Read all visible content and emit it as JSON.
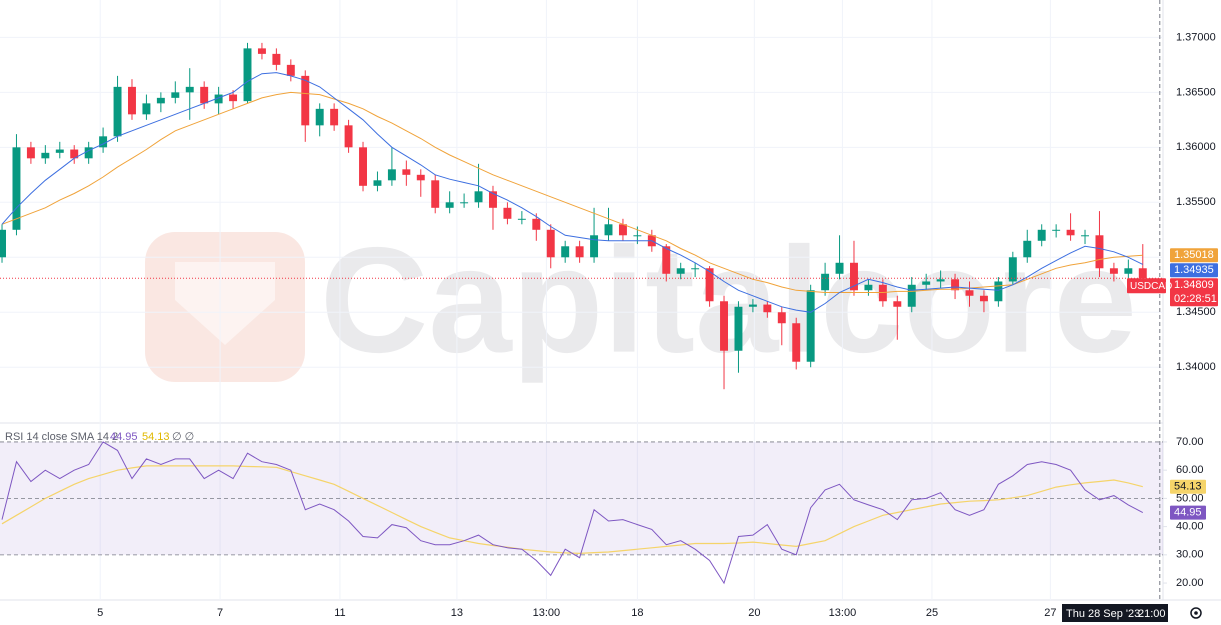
{
  "chart_data": {
    "type": "candlestick",
    "symbol": "USDCAD",
    "countdown": "02:28:51",
    "watermark": "Capitalcore",
    "up_color": "#089981",
    "down_color": "#f23645",
    "grid": true,
    "xlim": [
      -0.14,
      80.4
    ],
    "xticks": [
      {
        "value": 6.8,
        "label": "5"
      },
      {
        "value": 15.1,
        "label": "7"
      },
      {
        "value": 23.4,
        "label": "11"
      },
      {
        "value": 31.5,
        "label": "13"
      },
      {
        "value": 37.7,
        "label": "13:00"
      },
      {
        "value": 44,
        "label": "18"
      },
      {
        "value": 52.1,
        "label": "20"
      },
      {
        "value": 58.2,
        "label": "13:00"
      },
      {
        "value": 64.4,
        "label": "25"
      },
      {
        "value": 72.6,
        "label": "27"
      }
    ],
    "crosshair": {
      "x": 79,
      "date": "Thu 28 Sep '23",
      "time": "21:00"
    },
    "ylim": [
      1.3352,
      1.3734
    ],
    "yticks": [
      {
        "value": 1.37,
        "label": "1.37000"
      },
      {
        "value": 1.365,
        "label": "1.36500"
      },
      {
        "value": 1.36,
        "label": "1.36000"
      },
      {
        "value": 1.355,
        "label": "1.35500"
      },
      {
        "value": 1.35,
        "label": "1.35000"
      },
      {
        "value": 1.345,
        "label": "1.34500"
      },
      {
        "value": 1.34,
        "label": "1.34000"
      }
    ],
    "ohlc": [
      [
        1.35,
        1.353,
        1.3495,
        1.3525
      ],
      [
        1.3525,
        1.3612,
        1.352,
        1.36
      ],
      [
        1.36,
        1.3605,
        1.3585,
        1.359
      ],
      [
        1.359,
        1.3602,
        1.3585,
        1.3595
      ],
      [
        1.3595,
        1.3605,
        1.359,
        1.3598
      ],
      [
        1.3598,
        1.3602,
        1.3585,
        1.359
      ],
      [
        1.359,
        1.3605,
        1.3585,
        1.36
      ],
      [
        1.36,
        1.3618,
        1.3595,
        1.361
      ],
      [
        1.361,
        1.3665,
        1.3605,
        1.3655
      ],
      [
        1.3655,
        1.3662,
        1.3625,
        1.363
      ],
      [
        1.363,
        1.3648,
        1.3625,
        1.364
      ],
      [
        1.364,
        1.365,
        1.3632,
        1.3645
      ],
      [
        1.3645,
        1.366,
        1.364,
        1.365
      ],
      [
        1.365,
        1.3672,
        1.3625,
        1.3655
      ],
      [
        1.3655,
        1.366,
        1.3635,
        1.364
      ],
      [
        1.364,
        1.3655,
        1.363,
        1.3648
      ],
      [
        1.3648,
        1.3652,
        1.3635,
        1.3642
      ],
      [
        1.3642,
        1.3695,
        1.364,
        1.369
      ],
      [
        1.369,
        1.3695,
        1.368,
        1.3685
      ],
      [
        1.3685,
        1.369,
        1.367,
        1.3675
      ],
      [
        1.3675,
        1.368,
        1.366,
        1.3665
      ],
      [
        1.3665,
        1.367,
        1.3605,
        1.362
      ],
      [
        1.362,
        1.364,
        1.361,
        1.3635
      ],
      [
        1.3635,
        1.364,
        1.3615,
        1.362
      ],
      [
        1.362,
        1.3625,
        1.3595,
        1.36
      ],
      [
        1.36,
        1.3605,
        1.356,
        1.3565
      ],
      [
        1.3565,
        1.3578,
        1.356,
        1.357
      ],
      [
        1.357,
        1.36,
        1.3565,
        1.358
      ],
      [
        1.358,
        1.3588,
        1.3565,
        1.3575
      ],
      [
        1.3575,
        1.358,
        1.3555,
        1.357
      ],
      [
        1.357,
        1.3575,
        1.354,
        1.3545
      ],
      [
        1.3545,
        1.356,
        1.354,
        1.355
      ],
      [
        1.355,
        1.3558,
        1.3545,
        1.355
      ],
      [
        1.355,
        1.3585,
        1.3545,
        1.356
      ],
      [
        1.356,
        1.3565,
        1.3525,
        1.3545
      ],
      [
        1.3545,
        1.355,
        1.353,
        1.3535
      ],
      [
        1.3535,
        1.3542,
        1.353,
        1.3535
      ],
      [
        1.3535,
        1.354,
        1.3515,
        1.3525
      ],
      [
        1.3525,
        1.353,
        1.349,
        1.35
      ],
      [
        1.35,
        1.3515,
        1.3495,
        1.351
      ],
      [
        1.351,
        1.3515,
        1.3495,
        1.35
      ],
      [
        1.35,
        1.3545,
        1.3495,
        1.352
      ],
      [
        1.352,
        1.3545,
        1.3515,
        1.353
      ],
      [
        1.353,
        1.3535,
        1.3515,
        1.352
      ],
      [
        1.352,
        1.3528,
        1.3512,
        1.352
      ],
      [
        1.352,
        1.3525,
        1.3505,
        1.351
      ],
      [
        1.351,
        1.3512,
        1.3478,
        1.3485
      ],
      [
        1.3485,
        1.3495,
        1.348,
        1.349
      ],
      [
        1.349,
        1.3495,
        1.3482,
        1.349
      ],
      [
        1.349,
        1.3492,
        1.3455,
        1.346
      ],
      [
        1.346,
        1.3465,
        1.338,
        1.3415
      ],
      [
        1.3415,
        1.346,
        1.3395,
        1.3455
      ],
      [
        1.3455,
        1.3462,
        1.345,
        1.3457
      ],
      [
        1.3457,
        1.346,
        1.3445,
        1.345
      ],
      [
        1.345,
        1.3455,
        1.342,
        1.344
      ],
      [
        1.344,
        1.3445,
        1.3398,
        1.3405
      ],
      [
        1.3405,
        1.3475,
        1.34,
        1.347
      ],
      [
        1.347,
        1.3495,
        1.3465,
        1.3485
      ],
      [
        1.3485,
        1.352,
        1.348,
        1.3495
      ],
      [
        1.3495,
        1.3515,
        1.3465,
        1.347
      ],
      [
        1.347,
        1.348,
        1.3465,
        1.3475
      ],
      [
        1.3475,
        1.348,
        1.3455,
        1.346
      ],
      [
        1.346,
        1.3465,
        1.3425,
        1.3455
      ],
      [
        1.3455,
        1.3482,
        1.345,
        1.3475
      ],
      [
        1.3475,
        1.3485,
        1.347,
        1.3478
      ],
      [
        1.3478,
        1.3488,
        1.3472,
        1.348
      ],
      [
        1.348,
        1.3485,
        1.3462,
        1.347
      ],
      [
        1.347,
        1.3478,
        1.3455,
        1.3465
      ],
      [
        1.3465,
        1.347,
        1.345,
        1.346
      ],
      [
        1.346,
        1.3482,
        1.3455,
        1.3478
      ],
      [
        1.3478,
        1.3505,
        1.3475,
        1.35
      ],
      [
        1.35,
        1.3525,
        1.3495,
        1.3515
      ],
      [
        1.3515,
        1.353,
        1.351,
        1.3525
      ],
      [
        1.3525,
        1.353,
        1.3518,
        1.3525
      ],
      [
        1.3525,
        1.354,
        1.3515,
        1.352
      ],
      [
        1.352,
        1.3525,
        1.3512,
        1.352
      ],
      [
        1.352,
        1.3542,
        1.3482,
        1.349
      ],
      [
        1.349,
        1.3495,
        1.3478,
        1.3485
      ],
      [
        1.3485,
        1.3498,
        1.348,
        1.349
      ],
      [
        1.349,
        1.3512,
        1.3478,
        1.34809
      ]
    ],
    "overlays": [
      {
        "color": "#f0a33a",
        "values": [
          1.353,
          1.3535,
          1.354,
          1.3545,
          1.3552,
          1.3558,
          1.3565,
          1.3573,
          1.3582,
          1.359,
          1.3598,
          1.3607,
          1.3615,
          1.362,
          1.3625,
          1.363,
          1.3635,
          1.364,
          1.3645,
          1.3648,
          1.365,
          1.3649,
          1.3648,
          1.3644,
          1.364,
          1.3635,
          1.3628,
          1.3622,
          1.3615,
          1.3608,
          1.36,
          1.3593,
          1.3587,
          1.3581,
          1.3575,
          1.357,
          1.3565,
          1.356,
          1.3555,
          1.355,
          1.3545,
          1.354,
          1.3535,
          1.353,
          1.3525,
          1.352,
          1.3515,
          1.3508,
          1.3502,
          1.3495,
          1.349,
          1.3485,
          1.348,
          1.3477,
          1.3473,
          1.347,
          1.3469,
          1.3468,
          1.3468,
          1.3468,
          1.3468,
          1.3468,
          1.3469,
          1.3469,
          1.347,
          1.3471,
          1.3471,
          1.3472,
          1.3473,
          1.3474,
          1.3475,
          1.348,
          1.3485,
          1.349,
          1.3493,
          1.3495,
          1.3498,
          1.35,
          1.3501,
          1.35018
        ]
      },
      {
        "color": "#3d6fe0",
        "values": [
          1.353,
          1.3545,
          1.3558,
          1.357,
          1.358,
          1.359,
          1.3597,
          1.3603,
          1.361,
          1.3615,
          1.362,
          1.3625,
          1.363,
          1.3635,
          1.364,
          1.3645,
          1.365,
          1.366,
          1.3667,
          1.3668,
          1.3665,
          1.3661,
          1.3655,
          1.3645,
          1.3635,
          1.3625,
          1.3612,
          1.36,
          1.3592,
          1.3584,
          1.3575,
          1.3571,
          1.3568,
          1.3565,
          1.3558,
          1.3552,
          1.3545,
          1.3537,
          1.3528,
          1.352,
          1.3518,
          1.3516,
          1.3515,
          1.3515,
          1.3515,
          1.3515,
          1.3508,
          1.3502,
          1.3495,
          1.3487,
          1.3478,
          1.347,
          1.3465,
          1.346,
          1.3455,
          1.3452,
          1.345,
          1.3458,
          1.3468,
          1.3474,
          1.348,
          1.3477,
          1.3473,
          1.347,
          1.3471,
          1.3472,
          1.3473,
          1.3472,
          1.3471,
          1.347,
          1.3475,
          1.3482,
          1.349,
          1.3497,
          1.3504,
          1.351,
          1.3508,
          1.3505,
          1.35,
          1.34935
        ]
      }
    ],
    "rsi": {
      "label": "RSI 14 close SMA 14 2",
      "extra": "∅ ∅",
      "color": "#7e57c2",
      "sma_color": "#f5d46a",
      "ylim": [
        14,
        76
      ],
      "yticks": [
        {
          "value": 70,
          "label": "70.00"
        },
        {
          "value": 60,
          "label": "60.00"
        },
        {
          "value": 50,
          "label": "50.00"
        },
        {
          "value": 40,
          "label": "40.00"
        },
        {
          "value": 30,
          "label": "30.00"
        },
        {
          "value": 20,
          "label": "20.00"
        }
      ],
      "band": [
        30,
        70
      ],
      "middle": 50,
      "values": [
        42.5,
        63,
        56,
        60,
        57,
        60,
        62,
        70,
        67,
        57,
        64,
        62,
        64,
        64,
        57,
        60,
        57,
        66,
        63,
        62,
        60,
        46,
        48,
        46,
        42,
        36.5,
        36,
        40.7,
        39.6,
        35,
        33.6,
        33.6,
        35,
        37,
        33.6,
        32.5,
        32,
        28,
        22.7,
        32,
        29,
        46,
        42,
        42.5,
        40.7,
        39,
        33.6,
        35,
        32,
        28,
        20,
        36.5,
        37,
        40.7,
        32,
        30,
        46.7,
        53,
        55,
        49.5,
        47.7,
        46,
        42.5,
        49.5,
        50,
        52,
        46,
        44,
        46,
        55,
        58,
        62,
        63,
        62,
        60,
        53,
        49.5,
        51,
        47.7,
        44.95
      ],
      "sma": [
        41,
        44,
        47,
        50,
        52.5,
        55,
        57,
        58.5,
        60,
        60.8,
        61.5,
        61.5,
        61.5,
        61.5,
        61.5,
        61.5,
        61.5,
        61.3,
        61.2,
        61,
        59.5,
        58,
        56.5,
        55,
        52.5,
        50,
        47.5,
        45,
        42.5,
        40,
        38,
        36,
        35,
        34,
        33.3,
        32.7,
        32,
        31.5,
        31,
        30.7,
        30.5,
        30.8,
        31,
        31.5,
        32,
        32.5,
        33,
        33.5,
        34,
        34,
        34,
        34.2,
        34.5,
        34,
        33.5,
        33,
        34,
        35,
        37.5,
        40,
        42,
        44,
        45,
        46,
        47,
        48,
        48.5,
        49,
        49.2,
        49.5,
        50.2,
        51,
        52.5,
        54,
        54.8,
        55.5,
        56,
        56.5,
        55.5,
        54.13
      ]
    }
  }
}
